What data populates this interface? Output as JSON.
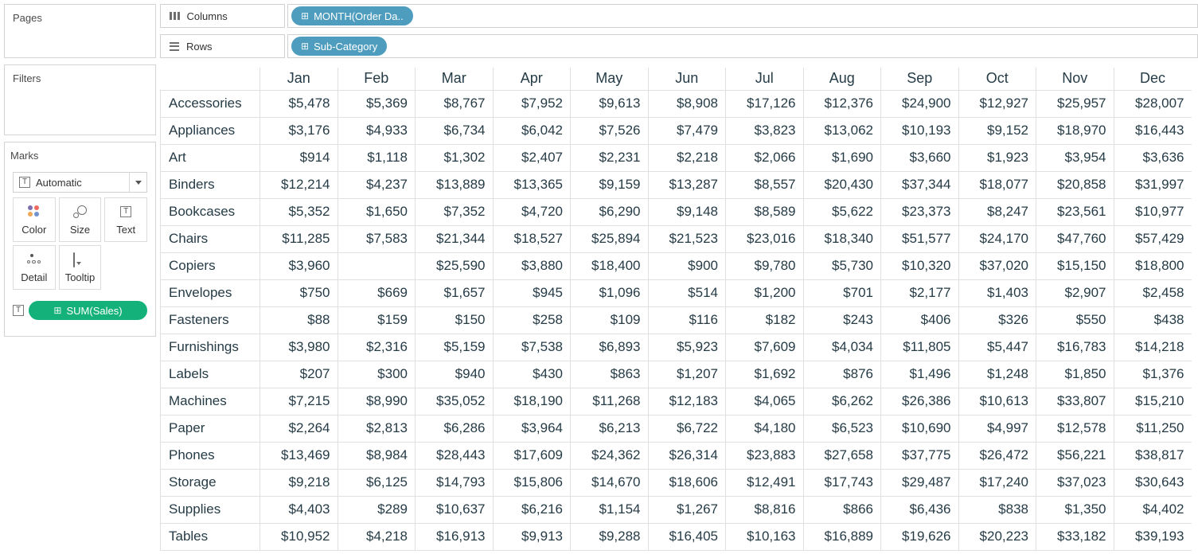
{
  "sidebar": {
    "pages_title": "Pages",
    "filters_title": "Filters",
    "marks": {
      "title": "Marks",
      "mark_type": "Automatic",
      "buttons": [
        {
          "label": "Color"
        },
        {
          "label": "Size"
        },
        {
          "label": "Text"
        },
        {
          "label": "Detail"
        },
        {
          "label": "Tooltip"
        }
      ],
      "color_icon_dots": [
        "#7d6fae",
        "#ee6a60",
        "#f0a656",
        "#7191cf"
      ],
      "encoding_pill": {
        "label": "SUM(Sales)",
        "color": "#14b27a",
        "icon": "text-icon",
        "plus_glyph": "⊞"
      }
    }
  },
  "shelves": {
    "columns": {
      "label": "Columns",
      "icon": "grid-columns-icon",
      "pill": "MONTH(Order Da..",
      "pill_color": "#4f9dbe",
      "plus_glyph": "⊞"
    },
    "rows": {
      "label": "Rows",
      "icon": "list-rows-icon",
      "pill": "Sub-Category",
      "pill_color": "#4f9dbe",
      "plus_glyph": "⊞"
    }
  },
  "table": {
    "columns": [
      "Jan",
      "Feb",
      "Mar",
      "Apr",
      "May",
      "Jun",
      "Jul",
      "Aug",
      "Sep",
      "Oct",
      "Nov",
      "Dec"
    ],
    "rows": [
      {
        "label": "Accessories",
        "values": [
          "$5,478",
          "$5,369",
          "$8,767",
          "$7,952",
          "$9,613",
          "$8,908",
          "$17,126",
          "$12,376",
          "$24,900",
          "$12,927",
          "$25,957",
          "$28,007"
        ]
      },
      {
        "label": "Appliances",
        "values": [
          "$3,176",
          "$4,933",
          "$6,734",
          "$6,042",
          "$7,526",
          "$7,479",
          "$3,823",
          "$13,062",
          "$10,193",
          "$9,152",
          "$18,970",
          "$16,443"
        ]
      },
      {
        "label": "Art",
        "values": [
          "$914",
          "$1,118",
          "$1,302",
          "$2,407",
          "$2,231",
          "$2,218",
          "$2,066",
          "$1,690",
          "$3,660",
          "$1,923",
          "$3,954",
          "$3,636"
        ]
      },
      {
        "label": "Binders",
        "values": [
          "$12,214",
          "$4,237",
          "$13,889",
          "$13,365",
          "$9,159",
          "$13,287",
          "$8,557",
          "$20,430",
          "$37,344",
          "$18,077",
          "$20,858",
          "$31,997"
        ]
      },
      {
        "label": "Bookcases",
        "values": [
          "$5,352",
          "$1,650",
          "$7,352",
          "$4,720",
          "$6,290",
          "$9,148",
          "$8,589",
          "$5,622",
          "$23,373",
          "$8,247",
          "$23,561",
          "$10,977"
        ]
      },
      {
        "label": "Chairs",
        "values": [
          "$11,285",
          "$7,583",
          "$21,344",
          "$18,527",
          "$25,894",
          "$21,523",
          "$23,016",
          "$18,340",
          "$51,577",
          "$24,170",
          "$47,760",
          "$57,429"
        ]
      },
      {
        "label": "Copiers",
        "values": [
          "$3,960",
          "",
          "$25,590",
          "$3,880",
          "$18,400",
          "$900",
          "$9,780",
          "$5,730",
          "$10,320",
          "$37,020",
          "$15,150",
          "$18,800"
        ]
      },
      {
        "label": "Envelopes",
        "values": [
          "$750",
          "$669",
          "$1,657",
          "$945",
          "$1,096",
          "$514",
          "$1,200",
          "$701",
          "$2,177",
          "$1,403",
          "$2,907",
          "$2,458"
        ]
      },
      {
        "label": "Fasteners",
        "values": [
          "$88",
          "$159",
          "$150",
          "$258",
          "$109",
          "$116",
          "$182",
          "$243",
          "$406",
          "$326",
          "$550",
          "$438"
        ]
      },
      {
        "label": "Furnishings",
        "values": [
          "$3,980",
          "$2,316",
          "$5,159",
          "$7,538",
          "$6,893",
          "$5,923",
          "$7,609",
          "$4,034",
          "$11,805",
          "$5,447",
          "$16,783",
          "$14,218"
        ]
      },
      {
        "label": "Labels",
        "values": [
          "$207",
          "$300",
          "$940",
          "$430",
          "$863",
          "$1,207",
          "$1,692",
          "$876",
          "$1,496",
          "$1,248",
          "$1,850",
          "$1,376"
        ]
      },
      {
        "label": "Machines",
        "values": [
          "$7,215",
          "$8,990",
          "$35,052",
          "$18,190",
          "$11,268",
          "$12,183",
          "$4,065",
          "$6,262",
          "$26,386",
          "$10,613",
          "$33,807",
          "$15,210"
        ]
      },
      {
        "label": "Paper",
        "values": [
          "$2,264",
          "$2,813",
          "$6,286",
          "$3,964",
          "$6,213",
          "$6,722",
          "$4,180",
          "$6,523",
          "$10,690",
          "$4,997",
          "$12,578",
          "$11,250"
        ]
      },
      {
        "label": "Phones",
        "values": [
          "$13,469",
          "$8,984",
          "$28,443",
          "$17,609",
          "$24,362",
          "$26,314",
          "$23,883",
          "$27,658",
          "$37,775",
          "$26,472",
          "$56,221",
          "$38,817"
        ]
      },
      {
        "label": "Storage",
        "values": [
          "$9,218",
          "$6,125",
          "$14,793",
          "$15,806",
          "$14,670",
          "$18,606",
          "$12,491",
          "$17,743",
          "$29,487",
          "$17,240",
          "$37,023",
          "$30,643"
        ]
      },
      {
        "label": "Supplies",
        "values": [
          "$4,403",
          "$289",
          "$10,637",
          "$6,216",
          "$1,154",
          "$1,267",
          "$8,816",
          "$866",
          "$6,436",
          "$838",
          "$1,350",
          "$4,402"
        ]
      },
      {
        "label": "Tables",
        "values": [
          "$10,952",
          "$4,218",
          "$16,913",
          "$9,913",
          "$9,288",
          "$16,405",
          "$10,163",
          "$16,889",
          "$19,626",
          "$20,223",
          "$33,182",
          "$39,193"
        ]
      }
    ]
  }
}
